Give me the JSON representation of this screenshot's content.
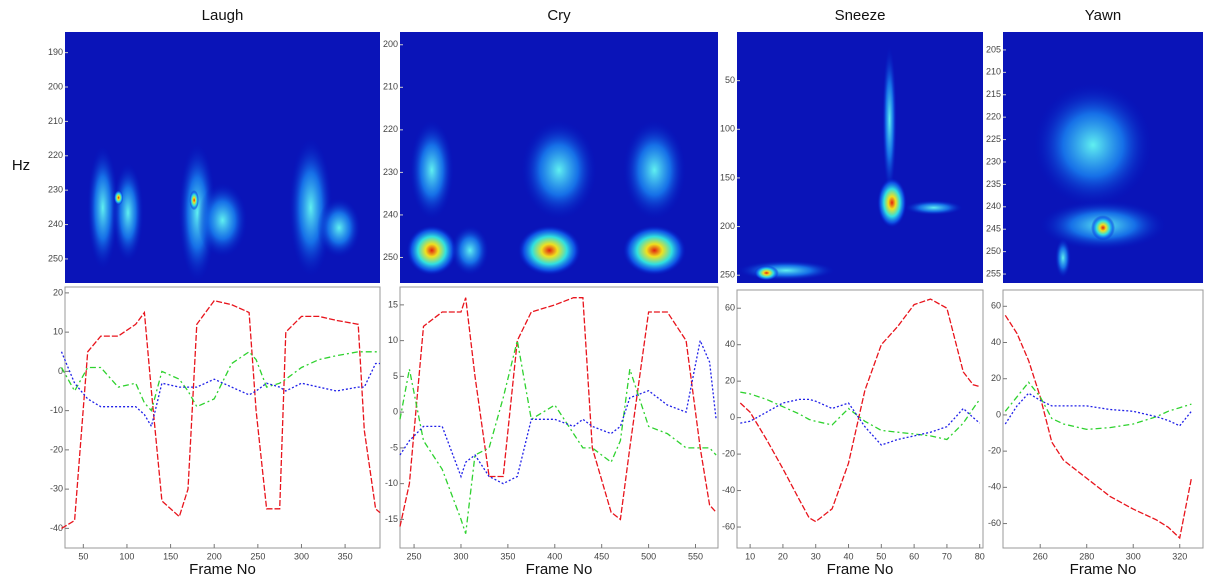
{
  "chart_data": [
    {
      "type": "spectrogram",
      "title": "Laugh",
      "y_label": "Hz",
      "ylim": [
        184,
        257
      ],
      "yticks": [
        190,
        200,
        210,
        220,
        230,
        240,
        250
      ]
    },
    {
      "type": "line",
      "x_label": "Frame No",
      "xlim": [
        29,
        390
      ],
      "ylim": [
        -45,
        21.5
      ],
      "xticks": [
        50,
        100,
        150,
        200,
        250,
        300,
        350
      ],
      "yticks": [
        20,
        10,
        0,
        -10,
        -20,
        -30,
        -40
      ],
      "x": [
        25,
        40,
        55,
        70,
        90,
        110,
        120,
        128,
        140,
        160,
        170,
        180,
        200,
        220,
        240,
        248,
        260,
        275,
        282,
        300,
        320,
        340,
        365,
        372,
        385,
        390
      ],
      "series": [
        {
          "color": "#e8141c",
          "values": [
            -40,
            -38,
            5,
            9,
            9,
            12,
            15,
            -5,
            -33,
            -37,
            -30,
            12,
            18,
            17,
            15,
            -10,
            -35,
            -35,
            10,
            14,
            14,
            13,
            12,
            -15,
            -35,
            -36
          ]
        },
        {
          "color": "#2fd22f",
          "values": [
            1,
            -5,
            1,
            1,
            -4,
            -3,
            -8,
            -10,
            0,
            -2,
            -5,
            -9,
            -7,
            2,
            5,
            3,
            -4,
            -3,
            -2,
            1,
            3,
            4,
            5,
            5,
            5,
            5
          ]
        },
        {
          "color": "#2020e8",
          "values": [
            5,
            -3,
            -7,
            -9,
            -9,
            -9,
            -11,
            -14,
            -3,
            -4,
            -4,
            -4,
            -2,
            -4,
            -6,
            -5,
            -3,
            -4,
            -5,
            -3,
            -4,
            -5,
            -4,
            -4,
            2,
            2
          ]
        }
      ]
    },
    {
      "type": "spectrogram",
      "title": "Cry",
      "ylim": [
        197,
        256
      ],
      "yticks": [
        200,
        210,
        220,
        230,
        240,
        250
      ]
    },
    {
      "type": "line",
      "x_label": "Frame No",
      "xlim": [
        235,
        574
      ],
      "ylim": [
        -19,
        17.5
      ],
      "xticks": [
        250,
        300,
        350,
        400,
        450,
        500,
        550
      ],
      "yticks": [
        15,
        10,
        5,
        0,
        -5,
        -10,
        -15
      ],
      "x": [
        235,
        245,
        260,
        280,
        300,
        305,
        315,
        330,
        345,
        360,
        375,
        400,
        420,
        430,
        440,
        460,
        470,
        480,
        500,
        520,
        540,
        555,
        565,
        572
      ],
      "series": [
        {
          "color": "#e8141c",
          "values": [
            -16,
            -10,
            12,
            14,
            14,
            16,
            5,
            -9,
            -9,
            10,
            14,
            15,
            16,
            16,
            -5,
            -14,
            -15,
            -5,
            14,
            14,
            10,
            -5,
            -13,
            -14
          ]
        },
        {
          "color": "#2fd22f",
          "values": [
            -1,
            6,
            -4,
            -8,
            -15,
            -17,
            -6,
            -5,
            2,
            10,
            -1,
            1,
            -3,
            -5,
            -5,
            -7,
            -4,
            6,
            -2,
            -3,
            -5,
            -5,
            -5,
            -6
          ]
        },
        {
          "color": "#2020e8",
          "values": [
            -6,
            -4,
            -2,
            -2,
            -9,
            -7,
            -6,
            -9,
            -10,
            -9,
            -1,
            -1,
            -2,
            -1,
            -2,
            -3,
            -2,
            2,
            3,
            1,
            0,
            10,
            7,
            -1
          ]
        }
      ]
    },
    {
      "type": "spectrogram",
      "title": "Sneeze",
      "ylim": [
        0,
        258
      ],
      "yticks": [
        50,
        100,
        150,
        200,
        250
      ]
    },
    {
      "type": "line",
      "x_label": "Frame No",
      "xlim": [
        6,
        81
      ],
      "ylim": [
        -71.5,
        70
      ],
      "xticks": [
        10,
        20,
        30,
        40,
        50,
        60,
        70,
        80
      ],
      "yticks": [
        60,
        40,
        20,
        0,
        -20,
        -40,
        -60
      ],
      "x": [
        7,
        10,
        15,
        20,
        25,
        28,
        30,
        35,
        40,
        45,
        50,
        55,
        60,
        65,
        70,
        75,
        78,
        80
      ],
      "series": [
        {
          "color": "#e8141c",
          "values": [
            8,
            3,
            -12,
            -28,
            -45,
            -55,
            -57,
            -50,
            -25,
            15,
            40,
            50,
            62,
            65,
            60,
            25,
            18,
            17
          ]
        },
        {
          "color": "#2fd22f",
          "values": [
            14,
            13,
            10,
            6,
            2,
            -1,
            -2,
            -4,
            5,
            -2,
            -7,
            -8,
            -9,
            -10,
            -12,
            -3,
            5,
            10
          ]
        },
        {
          "color": "#2020e8",
          "values": [
            -3,
            -2,
            3,
            8,
            10,
            10,
            9,
            5,
            8,
            -5,
            -15,
            -12,
            -10,
            -8,
            -5,
            5,
            0,
            -3
          ]
        }
      ]
    },
    {
      "type": "spectrogram",
      "title": "Yawn",
      "ylim": [
        201,
        257
      ],
      "yticks": [
        205,
        210,
        215,
        220,
        225,
        230,
        235,
        240,
        245,
        250,
        255
      ]
    },
    {
      "type": "line",
      "x_label": "Frame No",
      "xlim": [
        244,
        330
      ],
      "ylim": [
        -73.5,
        69
      ],
      "xticks": [
        260,
        280,
        300,
        320
      ],
      "yticks": [
        60,
        40,
        20,
        0,
        -20,
        -40,
        -60
      ],
      "x": [
        245,
        250,
        255,
        260,
        265,
        270,
        280,
        290,
        300,
        310,
        315,
        320,
        325
      ],
      "series": [
        {
          "color": "#e8141c",
          "values": [
            55,
            45,
            30,
            10,
            -15,
            -25,
            -35,
            -45,
            -52,
            -58,
            -62,
            -68,
            -35
          ]
        },
        {
          "color": "#2fd22f",
          "values": [
            2,
            10,
            18,
            10,
            -2,
            -5,
            -8,
            -7,
            -5,
            -1,
            2,
            4,
            6
          ]
        },
        {
          "color": "#2020e8",
          "values": [
            -5,
            5,
            12,
            8,
            5,
            5,
            5,
            3,
            2,
            -1,
            -3,
            -6,
            2
          ]
        }
      ]
    }
  ]
}
